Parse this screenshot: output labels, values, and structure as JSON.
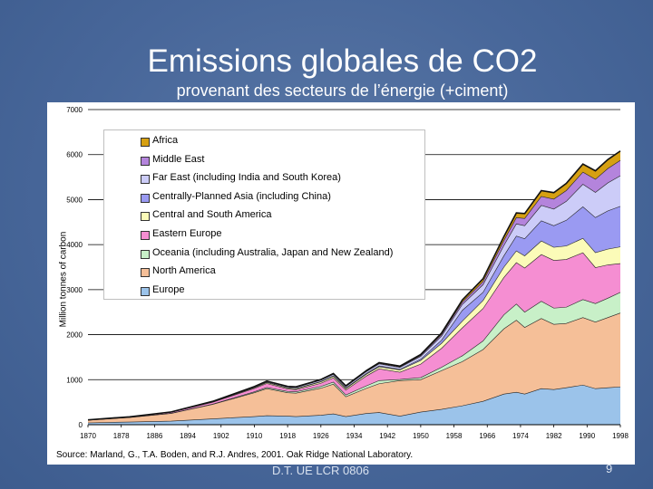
{
  "slide": {
    "title": "Emissions globales de CO2",
    "subtitle": "provenant des secteurs de l’énergie (+ciment)",
    "footer": "D.T. UE LCR 0806",
    "page_number": "9"
  },
  "chart_data": {
    "type": "area",
    "stacked": true,
    "title": "",
    "xlabel": "",
    "ylabel": "Million tonnes of carbon",
    "source": "Source:  Marland, G., T.A. Boden, and R.J. Andres, 2001.  Oak Ridge National Laboratory.",
    "ylim": [
      0,
      7000
    ],
    "xlim": [
      1870,
      1998
    ],
    "yticks": [
      "0",
      "1000",
      "2000",
      "3000",
      "4000",
      "5000",
      "6000",
      "7000"
    ],
    "xticks": [
      "1870",
      "1878",
      "1886",
      "1894",
      "1902",
      "1910",
      "1918",
      "1926",
      "1934",
      "1942",
      "1950",
      "1958",
      "1966",
      "1974",
      "1982",
      "1990",
      "1998"
    ],
    "grid": true,
    "legend_position": "top-left",
    "x": [
      1870,
      1880,
      1890,
      1900,
      1910,
      1913,
      1918,
      1920,
      1926,
      1929,
      1932,
      1937,
      1940,
      1945,
      1950,
      1955,
      1960,
      1965,
      1970,
      1973,
      1975,
      1979,
      1982,
      1985,
      1989,
      1992,
      1995,
      1998
    ],
    "series": [
      {
        "name": "Europe",
        "color": "#9bc3ea",
        "values": [
          40,
          60,
          80,
          130,
          180,
          200,
          190,
          180,
          210,
          240,
          180,
          250,
          270,
          190,
          280,
          340,
          420,
          520,
          680,
          720,
          680,
          800,
          780,
          820,
          880,
          800,
          820,
          840
        ]
      },
      {
        "name": "North America",
        "color": "#f5bf98",
        "values": [
          60,
          100,
          170,
          320,
          530,
          600,
          520,
          520,
          600,
          660,
          440,
          560,
          640,
          790,
          720,
          860,
          980,
          1150,
          1450,
          1600,
          1480,
          1560,
          1450,
          1430,
          1500,
          1480,
          1560,
          1640
        ]
      },
      {
        "name": "Oceania (including Australia, Japan and New Zealand)",
        "color": "#c8f0c8",
        "values": [
          1,
          2,
          4,
          8,
          20,
          25,
          28,
          30,
          40,
          45,
          40,
          55,
          70,
          25,
          45,
          75,
          130,
          190,
          310,
          360,
          340,
          380,
          360,
          360,
          400,
          410,
          430,
          460
        ]
      },
      {
        "name": "Eastern Europe",
        "color": "#f58ed2",
        "values": [
          5,
          10,
          20,
          40,
          75,
          90,
          55,
          45,
          70,
          95,
          110,
          220,
          260,
          160,
          300,
          420,
          620,
          720,
          830,
          920,
          980,
          1040,
          1060,
          1060,
          1040,
          800,
          740,
          640
        ]
      },
      {
        "name": "Central and South America",
        "color": "#fbfbb8",
        "values": [
          1,
          2,
          4,
          8,
          15,
          20,
          22,
          24,
          30,
          35,
          32,
          40,
          45,
          50,
          80,
          110,
          150,
          180,
          230,
          260,
          270,
          300,
          290,
          300,
          320,
          330,
          350,
          370
        ]
      },
      {
        "name": "Centrally-Planned Asia (including China)",
        "color": "#9a9af2",
        "values": [
          0,
          0,
          1,
          2,
          5,
          6,
          7,
          8,
          10,
          12,
          14,
          18,
          20,
          15,
          30,
          70,
          240,
          180,
          250,
          330,
          380,
          450,
          480,
          570,
          700,
          780,
          850,
          900
        ]
      },
      {
        "name": "Far East (including India and South Korea)",
        "color": "#ccccf8",
        "values": [
          1,
          2,
          4,
          8,
          15,
          18,
          20,
          22,
          28,
          32,
          30,
          40,
          45,
          40,
          60,
          90,
          130,
          170,
          230,
          270,
          290,
          340,
          370,
          420,
          500,
          560,
          620,
          680
        ]
      },
      {
        "name": "Middle East",
        "color": "#b484dc",
        "values": [
          0,
          0,
          0,
          1,
          2,
          3,
          3,
          4,
          5,
          6,
          6,
          8,
          10,
          12,
          20,
          35,
          50,
          70,
          110,
          140,
          160,
          200,
          220,
          240,
          270,
          290,
          320,
          340
        ]
      },
      {
        "name": "Africa",
        "color": "#d6a012",
        "values": [
          0,
          0,
          1,
          2,
          5,
          6,
          7,
          8,
          10,
          12,
          12,
          15,
          18,
          20,
          25,
          35,
          50,
          65,
          90,
          105,
          110,
          130,
          145,
          160,
          180,
          190,
          200,
          210
        ]
      }
    ]
  }
}
